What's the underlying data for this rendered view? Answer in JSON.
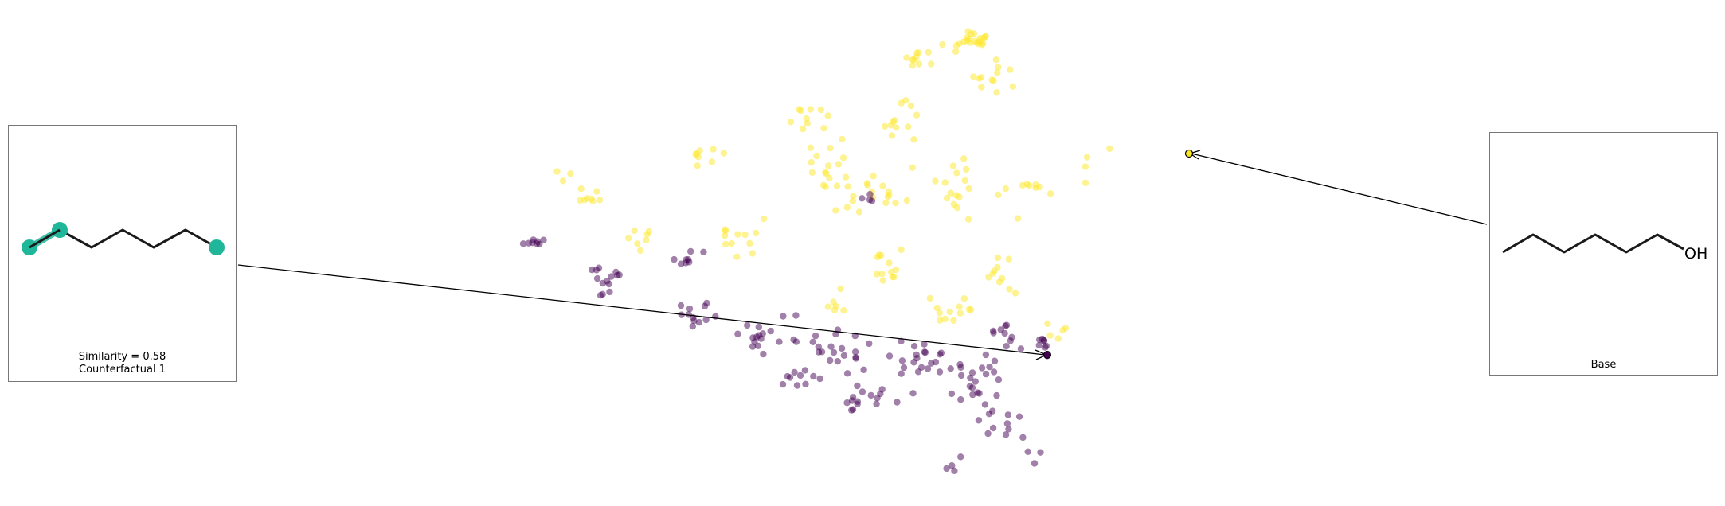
{
  "figure": {
    "counterfactual_panel": {
      "similarity_text": "Similarity = 0.58",
      "label": "Counterfactual 1",
      "highlight_color": "#20b699"
    },
    "base_panel": {
      "label": "Base",
      "functional_group": "OH"
    }
  },
  "chart_data": {
    "type": "scatter",
    "title": "",
    "xlabel": "",
    "ylabel": "",
    "axes_visible": false,
    "xlim": [
      0,
      1
    ],
    "ylim": [
      0,
      1
    ],
    "colormap": "viridis",
    "classes": [
      {
        "class": 0,
        "color": "#440154",
        "alpha": 0.5
      },
      {
        "class": 1,
        "color": "#fde725",
        "alpha": 0.5
      }
    ],
    "points_note": "embedding projection; two clusters (class 0 purple, class 1 yellow)",
    "highlighted_points": [
      {
        "role": "counterfactual",
        "x": 0.78,
        "y": 0.31,
        "class": 0
      },
      {
        "role": "base",
        "x": 1.0,
        "y": 0.7,
        "class": 1
      }
    ]
  }
}
